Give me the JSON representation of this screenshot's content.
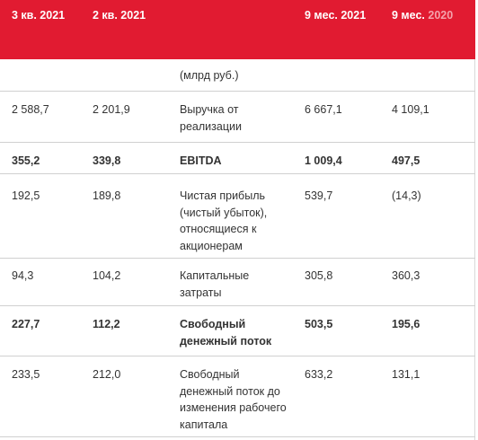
{
  "header": {
    "col1": "3 кв. 2021",
    "col2": "2 кв. 2021",
    "col3": "9 мес. 2021",
    "col4_main": "9 мес.",
    "col4_year": "2020"
  },
  "unit_label": "(млрд руб.)",
  "rows": [
    {
      "q3_2021": "2 588,7",
      "q2_2021": "2 201,9",
      "label": "Выручка от реализации",
      "m9_2021": "6 667,1",
      "m9_2020": "4 109,1",
      "bold": false
    },
    {
      "q3_2021": "355,2",
      "q2_2021": "339,8",
      "label": "EBITDA",
      "m9_2021": "1 009,4",
      "m9_2020": "497,5",
      "bold": true
    },
    {
      "q3_2021": "192,5",
      "q2_2021": "189,8",
      "label": "Чистая прибыль (чистый убыток), относящиеся к акционерам",
      "m9_2021": "539,7",
      "m9_2020": "(14,3)",
      "bold": false
    },
    {
      "q3_2021": "94,3",
      "q2_2021": "104,2",
      "label": "Капитальные затраты",
      "m9_2021": "305,8",
      "m9_2020": "360,3",
      "bold": false
    },
    {
      "q3_2021": "227,7",
      "q2_2021": "112,2",
      "label": "Свободный денежный поток",
      "m9_2021": "503,5",
      "m9_2020": "195,6",
      "bold": true
    },
    {
      "q3_2021": "233,5",
      "q2_2021": "212,0",
      "label": "Свободный денежный поток до изменения рабочего капитала",
      "m9_2021": "633,2",
      "m9_2020": "131,1",
      "bold": false
    }
  ],
  "colors": {
    "header_bg": "#e11b31",
    "header_text": "#ffffff",
    "header_faded": "#f4a2ab",
    "body_text": "#333333",
    "separator": "#d0d0d0"
  }
}
